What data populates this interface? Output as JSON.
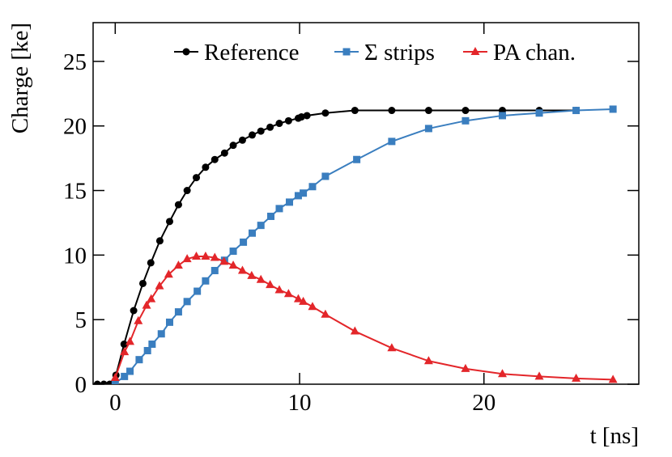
{
  "chart_data": {
    "type": "line",
    "xlabel": "t [ns]",
    "ylabel": "Charge [ke]",
    "xlim": [
      -1.2,
      28.4
    ],
    "ylim": [
      0,
      28
    ],
    "xticks": [
      0,
      10,
      20
    ],
    "yticks": [
      0,
      5,
      10,
      15,
      20,
      25
    ],
    "legend": "top",
    "series": [
      {
        "name": "Reference",
        "color": "#000000",
        "marker": "circle",
        "x": [
          -0.97,
          -0.62,
          -0.3,
          0.04,
          0.48,
          1.0,
          1.5,
          1.93,
          2.42,
          2.95,
          3.43,
          3.9,
          4.4,
          4.9,
          5.4,
          5.93,
          6.4,
          6.9,
          7.43,
          7.9,
          8.4,
          8.9,
          9.4,
          9.93,
          10.1,
          10.4,
          11.4,
          13.0,
          15.0,
          17.0,
          19.0,
          21.0,
          23.0,
          25.0
        ],
        "values": [
          0,
          0,
          0,
          0.7,
          3.1,
          5.7,
          7.8,
          9.4,
          11.1,
          12.6,
          13.9,
          15.0,
          16.0,
          16.8,
          17.4,
          17.9,
          18.5,
          18.9,
          19.3,
          19.6,
          19.9,
          20.2,
          20.4,
          20.6,
          20.7,
          20.8,
          21.0,
          21.2,
          21.2,
          21.2,
          21.2,
          21.2,
          21.2,
          21.2
        ]
      },
      {
        "name": "Σ strips",
        "color": "#3a7ebf",
        "marker": "square",
        "x": [
          0.0,
          0.5,
          0.8,
          1.3,
          1.75,
          2.0,
          2.5,
          2.95,
          3.43,
          3.9,
          4.45,
          4.9,
          5.4,
          5.93,
          6.4,
          6.95,
          7.43,
          7.9,
          8.44,
          8.9,
          9.45,
          9.93,
          10.2,
          10.7,
          11.4,
          13.1,
          15.0,
          17.0,
          19.0,
          21.0,
          23.0,
          25.0,
          27.0
        ],
        "values": [
          0.1,
          0.6,
          1.0,
          1.9,
          2.6,
          3.1,
          3.9,
          4.8,
          5.6,
          6.4,
          7.2,
          8.0,
          8.8,
          9.6,
          10.3,
          11.0,
          11.7,
          12.3,
          13.0,
          13.6,
          14.1,
          14.6,
          14.8,
          15.3,
          16.1,
          17.4,
          18.8,
          19.8,
          20.4,
          20.8,
          21.0,
          21.2,
          21.3
        ]
      },
      {
        "name": "PA chan.",
        "color": "#e3262a",
        "marker": "triangle",
        "x": [
          0.0,
          0.5,
          0.8,
          1.25,
          1.7,
          1.95,
          2.4,
          2.9,
          3.43,
          3.9,
          4.4,
          4.9,
          5.4,
          5.9,
          6.4,
          6.9,
          7.4,
          7.9,
          8.4,
          8.9,
          9.4,
          9.93,
          10.2,
          10.7,
          11.4,
          13.0,
          15.0,
          17.0,
          19.0,
          21.0,
          23.0,
          25.0,
          27.0
        ],
        "values": [
          0.5,
          2.5,
          3.3,
          4.9,
          6.1,
          6.6,
          7.6,
          8.5,
          9.2,
          9.7,
          9.9,
          9.9,
          9.8,
          9.5,
          9.2,
          8.8,
          8.4,
          8.1,
          7.7,
          7.3,
          7.0,
          6.6,
          6.4,
          6.0,
          5.4,
          4.1,
          2.8,
          1.8,
          1.2,
          0.8,
          0.6,
          0.45,
          0.35
        ]
      }
    ]
  }
}
